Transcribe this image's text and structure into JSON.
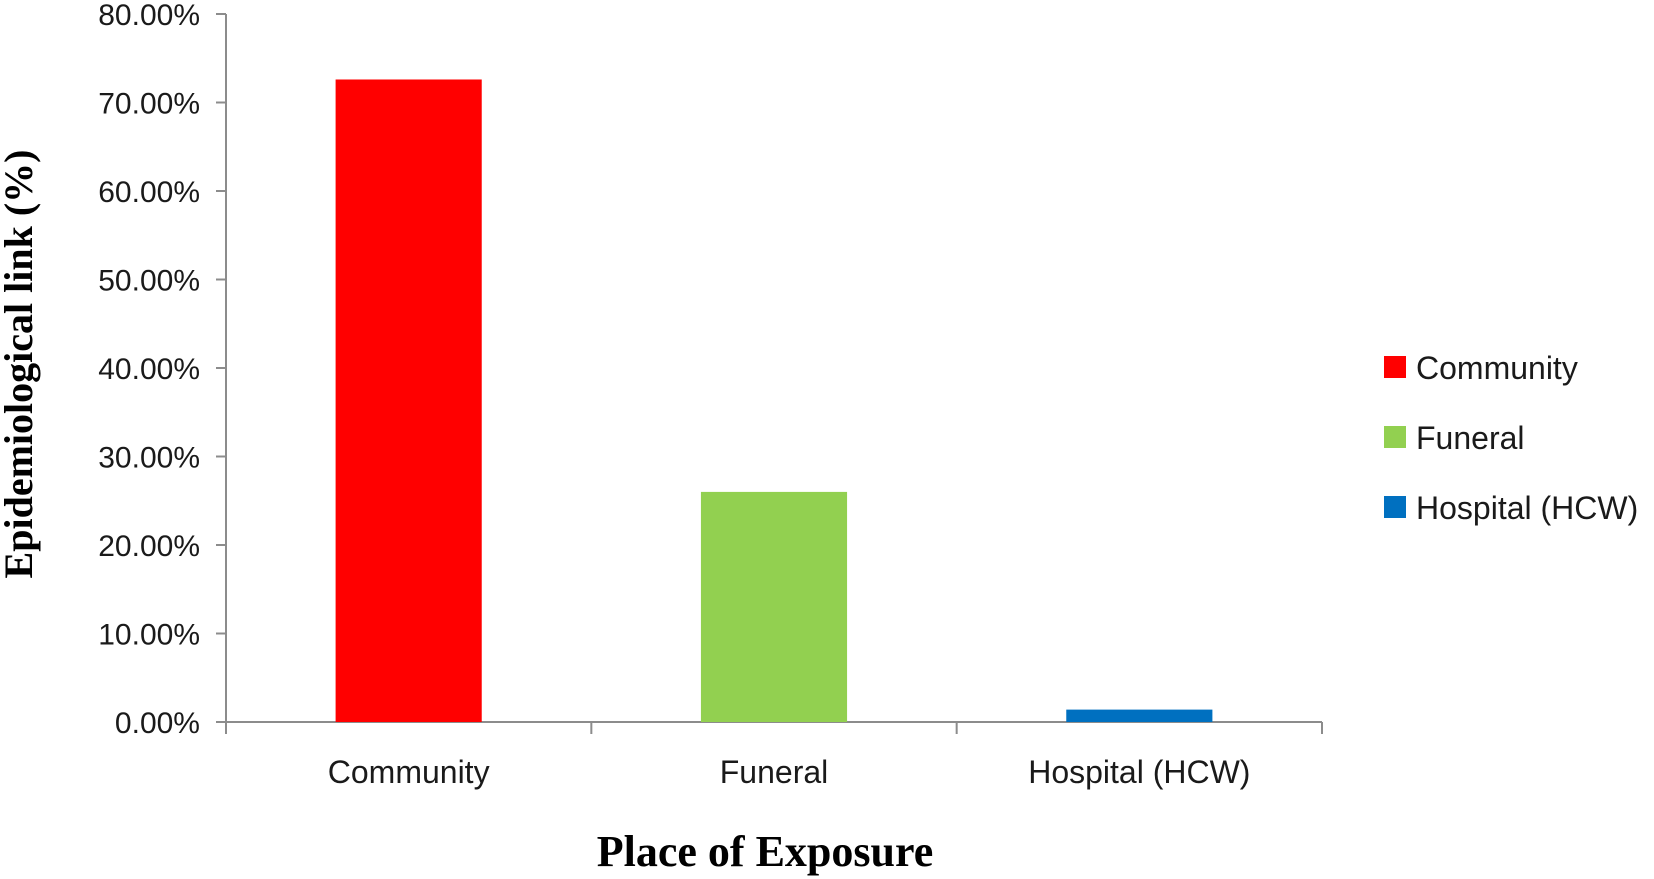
{
  "chart_data": {
    "type": "bar",
    "categories": [
      "Community",
      "Funeral",
      "Hospital (HCW)"
    ],
    "values": [
      72.6,
      26.0,
      1.4
    ],
    "colors": [
      "#ff0000",
      "#92d050",
      "#0070c0"
    ],
    "xlabel": "Place of Exposure",
    "ylabel": "Epidemiological link (%)",
    "ylim": [
      0,
      80
    ],
    "yticks": [
      "0.00%",
      "10.00%",
      "20.00%",
      "30.00%",
      "40.00%",
      "50.00%",
      "60.00%",
      "70.00%",
      "80.00%"
    ],
    "legend": {
      "position": "right",
      "entries": [
        "Community",
        "Funeral",
        "Hospital (HCW)"
      ]
    },
    "grid": false
  }
}
